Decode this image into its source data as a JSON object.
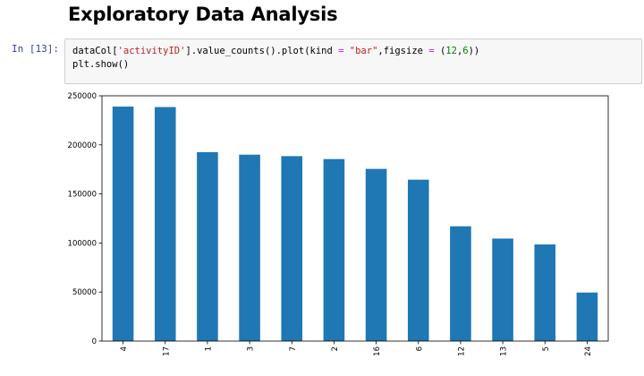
{
  "notebook": {
    "heading": "Exploratory Data Analysis",
    "prompt": "In [13]:",
    "code": {
      "line1": {
        "a": "dataCol[",
        "b": "'activityID'",
        "c": "].value_counts().plot(kind ",
        "d": "=",
        "e": " ",
        "f": "\"bar\"",
        "g": ",figsize ",
        "h": "=",
        "i": " (",
        "j": "12",
        "k": ",",
        "l": "6",
        "m": "))"
      },
      "line2": "plt.show()"
    }
  },
  "chart_data": {
    "type": "bar",
    "categories": [
      "4",
      "17",
      "1",
      "3",
      "7",
      "2",
      "16",
      "6",
      "12",
      "13",
      "5",
      "24"
    ],
    "values": [
      239000,
      238500,
      192500,
      190000,
      188500,
      185500,
      175500,
      164500,
      117000,
      104500,
      98500,
      49500
    ],
    "ylim": [
      0,
      250000
    ],
    "yticks": [
      0,
      50000,
      100000,
      150000,
      200000,
      250000
    ],
    "ytick_labels": [
      "0",
      "50000",
      "100000",
      "150000",
      "200000",
      "250000"
    ],
    "grid": false,
    "bar_color": "#1f77b4",
    "title": "",
    "xlabel": "",
    "ylabel": ""
  }
}
